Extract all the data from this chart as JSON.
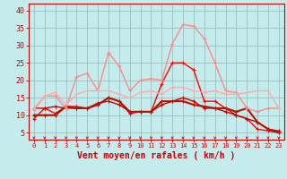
{
  "xlabel": "Vent moyen/en rafales ( km/h )",
  "bg_color": "#c5ecec",
  "grid_color": "#9bbfbf",
  "xlim": [
    -0.5,
    23.5
  ],
  "ylim": [
    3,
    42
  ],
  "yticks": [
    5,
    10,
    15,
    20,
    25,
    30,
    35,
    40
  ],
  "xticks": [
    0,
    1,
    2,
    3,
    4,
    5,
    6,
    7,
    8,
    9,
    10,
    11,
    12,
    13,
    14,
    15,
    16,
    17,
    18,
    19,
    20,
    21,
    22,
    23
  ],
  "series": [
    {
      "color": "#ff0000",
      "lw": 1.0,
      "data": [
        9,
        12,
        10.5,
        12.5,
        12.5,
        12,
        13,
        15,
        14,
        10.5,
        11,
        11,
        19,
        25,
        25,
        23,
        14,
        14,
        12,
        10,
        9,
        6,
        5.5,
        5
      ]
    },
    {
      "color": "#cc0000",
      "lw": 1.0,
      "data": [
        12,
        12,
        12.5,
        12,
        12,
        12,
        13.5,
        14,
        13,
        11,
        11,
        11,
        13,
        14,
        15,
        14,
        12,
        12,
        11,
        10,
        9,
        8,
        6,
        5.5
      ]
    },
    {
      "color": "#bb1100",
      "lw": 1.5,
      "data": [
        10,
        10,
        10,
        12.5,
        12,
        12,
        13,
        15,
        14,
        11,
        11,
        11,
        14,
        14,
        14,
        13,
        12.5,
        12,
        12,
        11,
        12,
        8,
        6,
        5
      ]
    },
    {
      "color": "#ff8888",
      "lw": 1.0,
      "data": [
        11.5,
        15.5,
        15.5,
        12,
        21,
        22,
        17,
        28,
        24,
        17,
        20,
        20.5,
        20,
        30.5,
        36,
        35.5,
        32,
        25,
        17,
        16.5,
        12,
        11,
        12,
        12
      ]
    },
    {
      "color": "#ffaaaa",
      "lw": 1.0,
      "data": [
        12,
        15.5,
        16.5,
        13,
        16,
        17,
        17,
        17,
        16,
        15,
        16.5,
        17,
        16,
        18,
        18,
        17,
        16.5,
        17,
        16,
        16,
        16.5,
        17,
        17,
        12
      ]
    }
  ],
  "arrow_color": "#cc0000",
  "xlabel_color": "#cc0000",
  "tick_color": "#cc0000",
  "spine_color": "#cc0000",
  "marker_size": 2.5,
  "marker": "+"
}
